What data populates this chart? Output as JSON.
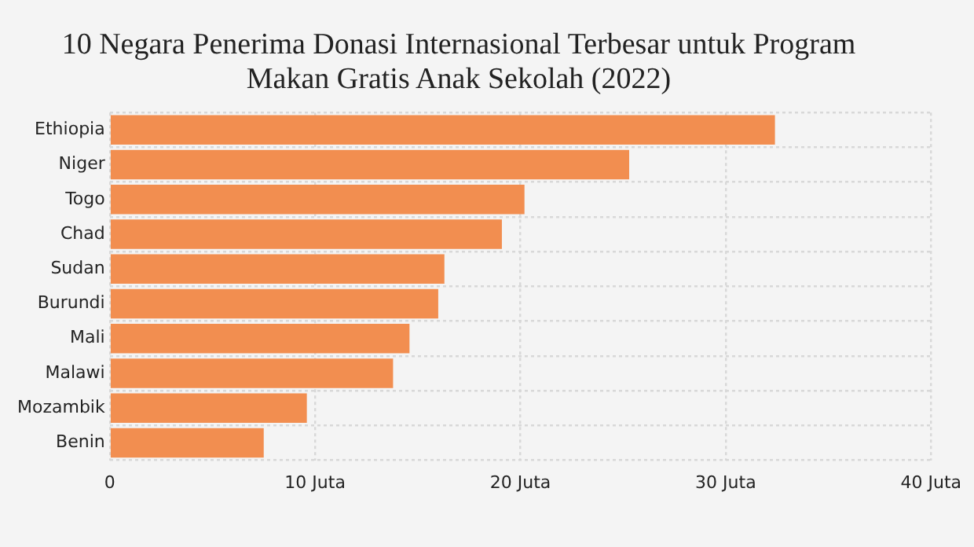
{
  "chart_data": {
    "type": "bar",
    "orientation": "horizontal",
    "title": "10 Negara Penerima Donasi Internasional Terbesar untuk Program Makan Gratis Anak Sekolah (2022)",
    "categories": [
      "Ethiopia",
      "Niger",
      "Togo",
      "Chad",
      "Sudan",
      "Burundi",
      "Mali",
      "Malawi",
      "Mozambik",
      "Benin"
    ],
    "values": [
      32.4,
      25.3,
      20.2,
      19.1,
      16.3,
      16.0,
      14.6,
      13.8,
      9.6,
      7.5
    ],
    "color": "#f28e50",
    "xlim": [
      0,
      40
    ],
    "xticks": [
      0,
      {
        "value": 10,
        "label": "10 Juta"
      },
      {
        "value": 20,
        "label": "20 Juta"
      },
      {
        "value": 30,
        "label": "30 Juta"
      },
      {
        "value": 40,
        "label": "40 Juta"
      }
    ],
    "grid": true,
    "legend": false
  }
}
